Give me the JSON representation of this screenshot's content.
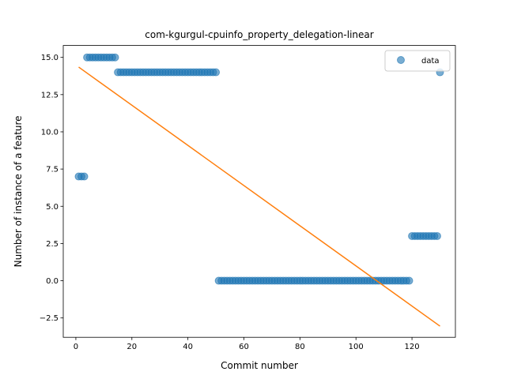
{
  "chart_data": {
    "type": "scatter",
    "title": "com-kgurgul-cpuinfo_property_delegation-linear",
    "xlabel": "Commit number",
    "ylabel": "Number of instance of a feature",
    "xlim": [
      -4.5,
      135.5
    ],
    "ylim": [
      -3.8,
      15.8
    ],
    "xticks": [
      0,
      20,
      40,
      60,
      80,
      100,
      120
    ],
    "yticks": [
      -2.5,
      0.0,
      2.5,
      5.0,
      7.5,
      10.0,
      12.5,
      15.0
    ],
    "ytick_labels": [
      "−2.5",
      "0.0",
      "2.5",
      "5.0",
      "7.5",
      "10.0",
      "12.5",
      "15.0"
    ],
    "legend": {
      "position": "top-right",
      "entries": [
        "data"
      ]
    },
    "colors": {
      "data": "#1f77b4",
      "fit": "#ff7f0e"
    },
    "series": [
      {
        "name": "data",
        "kind": "scatter",
        "segments": [
          {
            "x_start": 1,
            "x_end": 3,
            "y": 7
          },
          {
            "x_start": 4,
            "x_end": 14,
            "y": 15
          },
          {
            "x_start": 15,
            "x_end": 50,
            "y": 14
          },
          {
            "x_start": 51,
            "x_end": 119,
            "y": 0
          },
          {
            "x_start": 120,
            "x_end": 129,
            "y": 3
          },
          {
            "x_start": 130,
            "x_end": 130,
            "y": 14
          }
        ]
      },
      {
        "kind": "line",
        "x": [
          1,
          130
        ],
        "y": [
          14.35,
          -3.05
        ]
      }
    ],
    "grid": false
  }
}
